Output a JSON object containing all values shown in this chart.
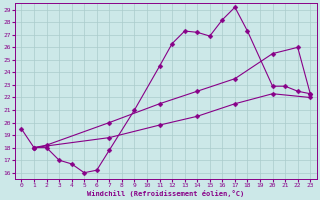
{
  "xlabel": "Windchill (Refroidissement éolien,°C)",
  "bg_color": "#cce8e8",
  "grid_color": "#aacccc",
  "line_color": "#880088",
  "xlim": [
    -0.5,
    23.5
  ],
  "ylim": [
    15.5,
    29.5
  ],
  "xticks": [
    0,
    1,
    2,
    3,
    4,
    5,
    6,
    7,
    8,
    9,
    10,
    11,
    12,
    13,
    14,
    15,
    16,
    17,
    18,
    19,
    20,
    21,
    22,
    23
  ],
  "yticks": [
    16,
    17,
    18,
    19,
    20,
    21,
    22,
    23,
    24,
    25,
    26,
    27,
    28,
    29
  ],
  "curve1_x": [
    0,
    1,
    2,
    3,
    4,
    5,
    6,
    7,
    9,
    11,
    12,
    13,
    14,
    15,
    16,
    17,
    18,
    20,
    21,
    22,
    23
  ],
  "curve1_y": [
    19.5,
    18.0,
    18.0,
    17.0,
    16.7,
    16.0,
    16.2,
    17.8,
    21.0,
    24.5,
    26.3,
    27.3,
    27.2,
    26.9,
    28.2,
    29.2,
    27.3,
    22.9,
    22.9,
    22.5,
    22.3
  ],
  "curve2_x": [
    1,
    2,
    7,
    11,
    14,
    17,
    20,
    22,
    23
  ],
  "curve2_y": [
    18.0,
    18.2,
    20.0,
    21.5,
    22.5,
    23.5,
    25.5,
    26.0,
    22.3
  ],
  "curve3_x": [
    1,
    7,
    11,
    14,
    17,
    20,
    23
  ],
  "curve3_y": [
    18.0,
    18.8,
    19.8,
    20.5,
    21.5,
    22.3,
    22.0
  ]
}
